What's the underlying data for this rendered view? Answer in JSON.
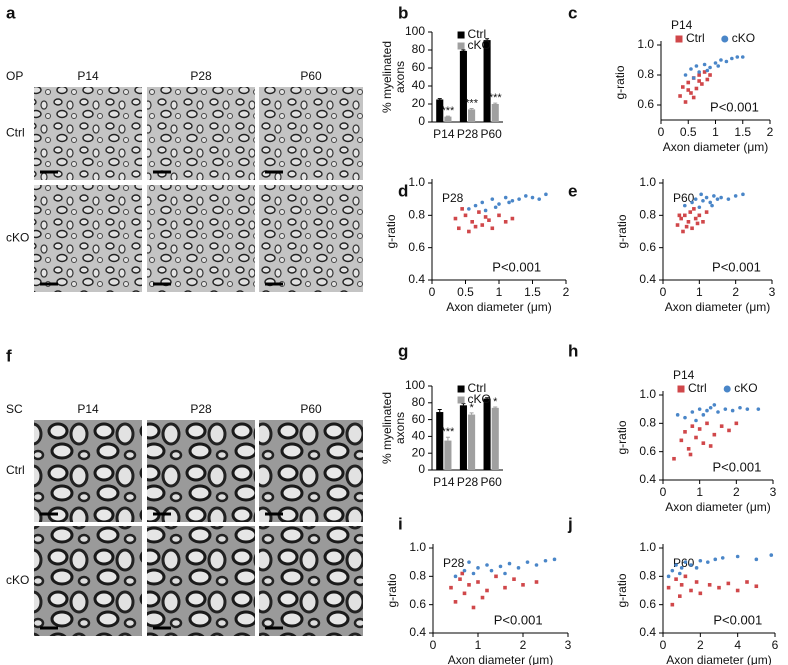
{
  "image_panels": [
    {
      "panel": "a",
      "tissue": "OP",
      "columns": [
        "P14",
        "P28",
        "P60"
      ],
      "rows": [
        "Ctrl",
        "cKO"
      ]
    },
    {
      "panel": "f",
      "tissue": "SC",
      "columns": [
        "P14",
        "P28",
        "P60"
      ],
      "rows": [
        "Ctrl",
        "cKO"
      ]
    }
  ],
  "chart_data": [
    {
      "type": "bar",
      "panel": "b",
      "ylabel": [
        "% myelinated",
        "axons"
      ],
      "categories": [
        "P14",
        "P28",
        "P60"
      ],
      "ylim": [
        0,
        100
      ],
      "yticks": [
        0,
        20,
        40,
        60,
        80,
        100
      ],
      "series": [
        {
          "name": "Ctrl",
          "color": "#000000",
          "values": [
            25,
            79,
            91
          ],
          "errors": [
            1,
            1,
            1.5
          ]
        },
        {
          "name": "cKO",
          "color": "#a0a0a0",
          "values": [
            6,
            14,
            20
          ],
          "errors": [
            0.5,
            1,
            1
          ],
          "annotations": [
            "***",
            "***",
            "***"
          ]
        }
      ]
    },
    {
      "type": "scatter",
      "panel": "c",
      "title": "P14",
      "legend": true,
      "annotation": "P<0.001",
      "xlabel": "Axon diameter (μm)",
      "ylabel": "g-ratio",
      "xlim": [
        0,
        2
      ],
      "xticks": [
        0,
        0.5,
        1,
        1.5,
        2
      ],
      "ylim": [
        0.5,
        1
      ],
      "yticks": [
        0.6,
        0.8,
        {
          "value": 1,
          "label": "1.0"
        }
      ],
      "series": [
        {
          "name": "Ctrl",
          "color": "#d0474a",
          "marker": "square",
          "x": [
            0.35,
            0.4,
            0.45,
            0.5,
            0.55,
            0.6,
            0.65,
            0.7,
            0.75,
            0.8,
            0.85,
            0.9,
            0.5,
            0.6,
            0.7
          ],
          "values": [
            0.66,
            0.72,
            0.62,
            0.75,
            0.68,
            0.78,
            0.71,
            0.8,
            0.74,
            0.82,
            0.77,
            0.8,
            0.7,
            0.65,
            0.76
          ]
        },
        {
          "name": "cKO",
          "color": "#4a86c8",
          "marker": "circle",
          "x": [
            0.45,
            0.55,
            0.65,
            0.7,
            0.8,
            0.9,
            1.0,
            1.1,
            1.2,
            1.3,
            1.4,
            0.6,
            0.85,
            1.05,
            1.5
          ],
          "values": [
            0.8,
            0.84,
            0.86,
            0.82,
            0.87,
            0.85,
            0.88,
            0.9,
            0.89,
            0.91,
            0.92,
            0.78,
            0.83,
            0.86,
            0.92
          ]
        }
      ]
    },
    {
      "type": "scatter",
      "panel": "d",
      "title": "P28",
      "annotation": "P<0.001",
      "xlabel": "Axon diameter (μm)",
      "ylabel": "g-ratio",
      "xlim": [
        0,
        2
      ],
      "xticks": [
        0,
        0.5,
        1,
        1.5,
        2
      ],
      "ylim": [
        0.4,
        1
      ],
      "yticks": [
        0.4,
        0.6,
        0.8,
        {
          "value": 1,
          "label": "1.0"
        }
      ],
      "series": [
        {
          "color": "#d0474a",
          "marker": "square",
          "x": [
            0.35,
            0.4,
            0.5,
            0.55,
            0.6,
            0.7,
            0.75,
            0.8,
            0.9,
            1.0,
            1.1,
            1.2,
            0.45,
            0.65,
            0.85
          ],
          "values": [
            0.78,
            0.72,
            0.8,
            0.7,
            0.76,
            0.82,
            0.74,
            0.79,
            0.72,
            0.8,
            0.76,
            0.78,
            0.84,
            0.73,
            0.77
          ]
        },
        {
          "color": "#4a86c8",
          "marker": "circle",
          "x": [
            0.55,
            0.65,
            0.75,
            0.8,
            0.9,
            1.0,
            1.1,
            1.2,
            1.3,
            1.4,
            1.5,
            1.6,
            1.7,
            0.95,
            1.15
          ],
          "values": [
            0.84,
            0.86,
            0.88,
            0.83,
            0.9,
            0.87,
            0.91,
            0.89,
            0.9,
            0.92,
            0.91,
            0.9,
            0.93,
            0.85,
            0.88
          ]
        }
      ]
    },
    {
      "type": "scatter",
      "panel": "e",
      "title": "P60",
      "annotation": "P<0.001",
      "xlabel": "Axon diameter (μm)",
      "ylabel": "g-ratio",
      "xlim": [
        0,
        3
      ],
      "xticks": [
        0,
        1,
        2,
        3
      ],
      "ylim": [
        0.4,
        1
      ],
      "yticks": [
        0.4,
        0.6,
        0.8,
        {
          "value": 1,
          "label": "1.0"
        }
      ],
      "series": [
        {
          "color": "#d0474a",
          "marker": "square",
          "x": [
            0.4,
            0.5,
            0.55,
            0.6,
            0.7,
            0.75,
            0.8,
            0.9,
            1.0,
            1.1,
            1.2,
            0.65,
            0.85,
            0.95,
            0.45
          ],
          "values": [
            0.74,
            0.78,
            0.7,
            0.8,
            0.76,
            0.82,
            0.72,
            0.78,
            0.8,
            0.76,
            0.82,
            0.73,
            0.84,
            0.75,
            0.8
          ]
        },
        {
          "color": "#4a86c8",
          "marker": "circle",
          "x": [
            0.6,
            0.8,
            0.9,
            1.0,
            1.1,
            1.2,
            1.3,
            1.4,
            1.5,
            1.6,
            1.8,
            2.0,
            2.2,
            1.05,
            1.35
          ],
          "values": [
            0.86,
            0.88,
            0.9,
            0.85,
            0.89,
            0.91,
            0.88,
            0.92,
            0.9,
            0.91,
            0.9,
            0.92,
            0.93,
            0.93,
            0.86
          ]
        }
      ]
    },
    {
      "type": "bar",
      "panel": "g",
      "ylabel": [
        "% myelinated",
        "axons"
      ],
      "categories": [
        "P14",
        "P28",
        "P60"
      ],
      "ylim": [
        0,
        100
      ],
      "yticks": [
        0,
        20,
        40,
        60,
        80,
        100
      ],
      "series": [
        {
          "name": "Ctrl",
          "color": "#000000",
          "values": [
            69,
            77,
            85
          ],
          "errors": [
            3,
            2,
            1
          ]
        },
        {
          "name": "cKO",
          "color": "#a0a0a0",
          "values": [
            35,
            66,
            74
          ],
          "errors": [
            4,
            2,
            1
          ],
          "annotations": [
            "***",
            "*",
            "*"
          ]
        }
      ]
    },
    {
      "type": "scatter",
      "panel": "h",
      "title": "P14",
      "legend": true,
      "annotation": "P<0.001",
      "xlabel": "Axon diameter (μm)",
      "ylabel": "g-ratio",
      "xlim": [
        0,
        3
      ],
      "xticks": [
        0,
        1,
        2,
        3
      ],
      "ylim": [
        0.4,
        1
      ],
      "yticks": [
        0.4,
        0.6,
        0.8,
        {
          "value": 1,
          "label": "1.0"
        }
      ],
      "series": [
        {
          "name": "Ctrl",
          "color": "#d0474a",
          "marker": "square",
          "x": [
            0.3,
            0.5,
            0.6,
            0.7,
            0.8,
            0.9,
            1.0,
            1.1,
            1.2,
            1.4,
            1.6,
            1.8,
            2.0,
            0.75,
            1.3
          ],
          "values": [
            0.55,
            0.68,
            0.74,
            0.62,
            0.78,
            0.7,
            0.76,
            0.66,
            0.8,
            0.72,
            0.78,
            0.75,
            0.8,
            0.58,
            0.64
          ]
        },
        {
          "name": "cKO",
          "color": "#4a86c8",
          "marker": "circle",
          "x": [
            0.4,
            0.6,
            0.8,
            1.0,
            1.1,
            1.2,
            1.3,
            1.5,
            1.7,
            1.9,
            2.1,
            2.3,
            2.6,
            0.9,
            1.4
          ],
          "values": [
            0.86,
            0.84,
            0.88,
            0.9,
            0.86,
            0.89,
            0.91,
            0.88,
            0.9,
            0.89,
            0.91,
            0.9,
            0.9,
            0.82,
            0.93
          ]
        }
      ]
    },
    {
      "type": "scatter",
      "panel": "i",
      "title": "P28",
      "annotation": "P<0.001",
      "xlabel": "Axon diameter (μm)",
      "ylabel": "g-ratio",
      "xlim": [
        0,
        3
      ],
      "xticks": [
        0,
        1,
        2,
        3
      ],
      "ylim": [
        0.4,
        1
      ],
      "yticks": [
        0.4,
        0.6,
        0.8,
        {
          "value": 1,
          "label": "1.0"
        }
      ],
      "series": [
        {
          "color": "#d0474a",
          "marker": "square",
          "x": [
            0.4,
            0.5,
            0.6,
            0.7,
            0.8,
            0.9,
            1.0,
            1.2,
            1.4,
            1.6,
            1.8,
            2.0,
            2.3,
            0.65,
            1.1
          ],
          "values": [
            0.72,
            0.62,
            0.78,
            0.68,
            0.74,
            0.58,
            0.76,
            0.7,
            0.8,
            0.72,
            0.78,
            0.74,
            0.76,
            0.82,
            0.65
          ]
        },
        {
          "color": "#4a86c8",
          "marker": "circle",
          "x": [
            0.5,
            0.7,
            0.9,
            1.0,
            1.2,
            1.3,
            1.5,
            1.7,
            1.9,
            2.1,
            2.3,
            2.5,
            2.7,
            0.8,
            1.6
          ],
          "values": [
            0.8,
            0.84,
            0.82,
            0.86,
            0.88,
            0.84,
            0.87,
            0.89,
            0.86,
            0.9,
            0.88,
            0.91,
            0.92,
            0.9,
            0.82
          ]
        }
      ]
    },
    {
      "type": "scatter",
      "panel": "j",
      "title": "P60",
      "annotation": "P<0.001",
      "xlabel": "Axon diameter (μm)",
      "ylabel": "g-ratio",
      "xlim": [
        0,
        6
      ],
      "xticks": [
        0,
        2,
        4,
        6
      ],
      "ylim": [
        0.4,
        1
      ],
      "yticks": [
        0.4,
        0.6,
        0.8,
        {
          "value": 1,
          "label": "1.0"
        }
      ],
      "series": [
        {
          "color": "#d0474a",
          "marker": "square",
          "x": [
            0.3,
            0.5,
            0.7,
            0.9,
            1.0,
            1.2,
            1.5,
            1.8,
            2.0,
            2.5,
            3.0,
            3.5,
            4.0,
            4.5,
            5.0
          ],
          "values": [
            0.72,
            0.6,
            0.78,
            0.66,
            0.74,
            0.8,
            0.7,
            0.76,
            0.68,
            0.74,
            0.72,
            0.75,
            0.7,
            0.76,
            0.73
          ]
        },
        {
          "color": "#4a86c8",
          "marker": "circle",
          "x": [
            0.3,
            0.5,
            0.7,
            0.9,
            1.0,
            1.2,
            1.5,
            1.8,
            2.0,
            2.4,
            2.8,
            3.2,
            4.0,
            5.0,
            5.8
          ],
          "values": [
            0.8,
            0.84,
            0.88,
            0.82,
            0.86,
            0.9,
            0.88,
            0.86,
            0.91,
            0.9,
            0.92,
            0.93,
            0.94,
            0.92,
            0.95
          ]
        }
      ]
    }
  ]
}
